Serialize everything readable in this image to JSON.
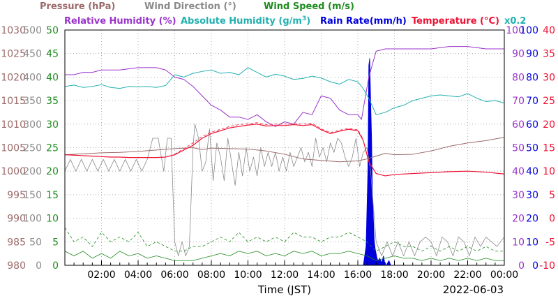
{
  "chart_data": {
    "type": "line",
    "legend": {
      "row1": [
        {
          "label": "Pressure (hPa)",
          "color": "#9c6a6a"
        },
        {
          "label": "Wind Direction (°)",
          "color": "#8a8a8a"
        },
        {
          "label": "Wind Speed (m/s)",
          "color": "#1e8c1e"
        }
      ],
      "row2": [
        {
          "label": "Relative Humidity (%)",
          "color": "#9933cc"
        },
        {
          "label": "Absolute Humidity (g/m",
          "sup": "3",
          "close": ")",
          "color": "#22b0b0"
        },
        {
          "label": "Rain Rate(mm/h)",
          "color": "#0000dd"
        },
        {
          "label": "Temperature (°C)",
          "color": "#ee1133"
        },
        {
          "label": "x0.2",
          "color": "#22b0b0"
        }
      ]
    },
    "axes": {
      "pressure": {
        "ticks": [
          "1030",
          "1025",
          "1020",
          "1015",
          "1010",
          "1005",
          "1000",
          "995",
          "990",
          "985",
          "980"
        ],
        "range": [
          980,
          1030
        ],
        "color": "#9c6a6a"
      },
      "wind_direction": {
        "ticks": [
          "500",
          "450",
          "400",
          "350",
          "300",
          "250",
          "200",
          "150",
          "100",
          "50",
          "0"
        ],
        "range": [
          0,
          500
        ],
        "color": "#8a8a8a"
      },
      "wind_speed": {
        "ticks": [
          "50",
          "45",
          "40",
          "35",
          "30",
          "25",
          "20",
          "15",
          "10",
          "5",
          "0"
        ],
        "range": [
          0,
          50
        ],
        "color": "#1e8c1e"
      },
      "humidity": {
        "ticks": [
          "100",
          "90",
          "80",
          "70",
          "60",
          "50",
          "40",
          "30",
          "20",
          "10",
          "0"
        ],
        "range": [
          0,
          100
        ],
        "color": "#9933cc"
      },
      "rain_rate": {
        "ticks": [
          "100",
          "90",
          "80",
          "70",
          "60",
          "50",
          "40",
          "30",
          "20",
          "10",
          "0"
        ],
        "range": [
          0,
          100
        ],
        "color": "#0000dd"
      },
      "temperature": {
        "ticks": [
          "40",
          "35",
          "30",
          "25",
          "20",
          "15",
          "10",
          "5",
          "0",
          "-5",
          "-10"
        ],
        "range": [
          -10,
          40
        ],
        "color": "#ee1133"
      }
    },
    "x_ticks": [
      "02:00",
      "04:00",
      "06:00",
      "08:00",
      "10:00",
      "12:00",
      "14:00",
      "16:00",
      "18:00",
      "20:00",
      "22:00",
      "00:00"
    ],
    "x_range_hours": [
      0,
      24
    ],
    "xlabel": "Time (JST)",
    "date": "2022-06-03",
    "grid": true,
    "series": [
      {
        "name": "Pressure (hPa)",
        "color": "#9c6a6a",
        "width": 1,
        "x": [
          0,
          1,
          2,
          3,
          4,
          5,
          6,
          7,
          7.5,
          8,
          9,
          10,
          11,
          12,
          13,
          14,
          15,
          16,
          16.5,
          17,
          17.5,
          18,
          19,
          20,
          21,
          22,
          23,
          24
        ],
        "y": [
          1003.5,
          1003.7,
          1003.9,
          1004.0,
          1004.2,
          1004.5,
          1004.8,
          1005.0,
          1004.6,
          1004.9,
          1004.8,
          1004.7,
          1004.3,
          1003.6,
          1002.6,
          1002.3,
          1002.0,
          1002.2,
          1002.6,
          1003.2,
          1003.8,
          1003.5,
          1003.6,
          1004.3,
          1005.3,
          1006.0,
          1006.5,
          1007.2
        ]
      },
      {
        "name": "Wind Direction (°)",
        "color": "#8a8a8a",
        "width": 0.8,
        "x": [
          0,
          0.3,
          0.6,
          0.9,
          1.2,
          1.5,
          1.8,
          2.1,
          2.4,
          2.7,
          3,
          3.3,
          3.6,
          3.9,
          4.2,
          4.5,
          4.8,
          5.1,
          5.4,
          5.6,
          5.8,
          6,
          6.2,
          6.4,
          6.6,
          6.8,
          7,
          7.1,
          7.3,
          7.5,
          7.7,
          7.9,
          8.1,
          8.3,
          8.5,
          8.7,
          8.9,
          9.1,
          9.3,
          9.5,
          9.7,
          9.9,
          10.1,
          10.3,
          10.5,
          10.7,
          10.9,
          11.1,
          11.3,
          11.5,
          11.7,
          11.9,
          12.1,
          12.3,
          12.5,
          12.7,
          12.9,
          13.1,
          13.3,
          13.5,
          13.7,
          13.9,
          14.1,
          14.3,
          14.5,
          14.7,
          14.9,
          15.1,
          15.3,
          15.5,
          15.7,
          15.9,
          16.1,
          16.3,
          16.5,
          16.7,
          17,
          17.3,
          17.6,
          17.9,
          18.2,
          18.5,
          18.8,
          19.1,
          19.4,
          19.7,
          20,
          20.3,
          20.6,
          20.9,
          21.2,
          21.5,
          21.8,
          22.1,
          22.4,
          22.7,
          23,
          23.3,
          23.6,
          24
        ],
        "y": [
          200,
          225,
          200,
          225,
          200,
          225,
          200,
          225,
          200,
          225,
          200,
          225,
          200,
          225,
          200,
          225,
          270,
          270,
          200,
          270,
          270,
          50,
          20,
          50,
          20,
          40,
          250,
          300,
          270,
          200,
          220,
          290,
          180,
          260,
          230,
          180,
          270,
          220,
          170,
          240,
          190,
          250,
          200,
          230,
          190,
          250,
          210,
          240,
          210,
          240,
          200,
          230,
          200,
          240,
          210,
          230,
          250,
          220,
          240,
          210,
          270,
          230,
          250,
          220,
          260,
          240,
          270,
          260,
          230,
          210,
          230,
          270,
          210,
          240,
          250,
          200,
          50,
          20,
          50,
          20,
          50,
          20,
          50,
          20,
          50,
          60,
          50,
          20,
          60,
          50,
          20,
          60,
          50,
          20,
          60,
          40,
          60,
          50,
          40,
          60
        ]
      },
      {
        "name": "Wind Speed (m/s)",
        "color": "#1e8c1e",
        "width": 0.8,
        "x": [
          0,
          0.5,
          1,
          1.5,
          2,
          2.5,
          3,
          3.5,
          4,
          4.5,
          5,
          5.5,
          6,
          6.5,
          7,
          7.5,
          8,
          8.5,
          9,
          9.5,
          10,
          10.5,
          11,
          11.5,
          12,
          12.5,
          13,
          13.5,
          14,
          14.5,
          15,
          15.5,
          16,
          16.5,
          17,
          17.5,
          18,
          18.5,
          19,
          19.5,
          20,
          20.5,
          21,
          21.5,
          22,
          22.5,
          23,
          23.5,
          24
        ],
        "y": [
          3,
          2,
          3,
          1.5,
          2.5,
          1.5,
          3,
          2,
          2.5,
          1.5,
          2,
          1.5,
          1,
          1,
          1,
          1.5,
          2,
          2.5,
          2,
          3,
          2.5,
          3,
          2,
          2.5,
          2,
          3,
          2.5,
          3,
          2,
          2.5,
          2.5,
          3,
          2.5,
          2,
          1,
          1.5,
          2,
          1.5,
          1.5,
          1,
          1.5,
          1,
          1.5,
          1,
          1.5,
          1,
          1.5,
          1,
          1
        ]
      },
      {
        "name": "Wind Speed gust (m/s)",
        "color": "#1e8c1e",
        "width": 0.8,
        "dash": "4,3",
        "x": [
          0,
          0.5,
          1,
          1.5,
          2,
          2.5,
          3,
          3.5,
          4,
          4.5,
          5,
          5.5,
          6,
          6.5,
          7,
          7.5,
          8,
          8.5,
          9,
          9.5,
          10,
          10.5,
          11,
          11.5,
          12,
          12.5,
          13,
          13.5,
          14,
          14.5,
          15,
          15.5,
          16,
          16.5,
          17,
          17.5,
          18,
          18.5,
          19,
          19.5,
          20,
          20.5,
          21,
          21.5,
          22,
          22.5,
          23,
          23.5,
          24
        ],
        "y": [
          8,
          5,
          6,
          4,
          7,
          5,
          6,
          5,
          7,
          4,
          5,
          4,
          3,
          3,
          4,
          4,
          5,
          6,
          5,
          7,
          5,
          6,
          5,
          6,
          5,
          7,
          6,
          6,
          5,
          6,
          6,
          7,
          6,
          5,
          3,
          4,
          5,
          4,
          4,
          3,
          4,
          3,
          4,
          3,
          4,
          3,
          4,
          3,
          3
        ]
      },
      {
        "name": "Relative Humidity (%)",
        "color": "#9933cc",
        "width": 1,
        "x": [
          0,
          0.5,
          1,
          1.5,
          2,
          3,
          4,
          5,
          5.5,
          6,
          6.5,
          7,
          7.5,
          8,
          8.5,
          9,
          9.5,
          10,
          10.5,
          11,
          11.5,
          12,
          12.5,
          13,
          13.5,
          14,
          14.5,
          15,
          15.5,
          16,
          16.2,
          16.6,
          17,
          17.5,
          18,
          19,
          20,
          21,
          22,
          23,
          24
        ],
        "y": [
          81,
          81,
          82,
          82,
          83,
          83,
          84,
          84,
          83,
          80,
          79,
          76,
          72,
          68,
          66,
          63,
          63,
          62,
          64,
          61,
          59,
          61,
          60,
          65,
          64,
          72,
          71,
          66,
          64,
          64,
          62,
          80,
          91,
          92,
          92,
          92,
          92,
          93,
          93,
          92,
          92
        ]
      },
      {
        "name": "Absolute Humidity x0.2 (g/m3)",
        "color": "#22b0b0",
        "width": 1,
        "x": [
          0,
          0.5,
          1,
          1.5,
          2,
          2.5,
          3,
          3.5,
          4,
          4.5,
          5,
          5.5,
          6,
          6.5,
          7,
          7.5,
          8,
          8.5,
          9,
          9.5,
          10,
          10.5,
          11,
          11.5,
          12,
          12.5,
          13,
          13.5,
          14,
          14.5,
          15,
          15.5,
          16,
          16.3,
          16.6,
          17,
          17.5,
          18,
          18.5,
          19,
          19.5,
          20,
          20.5,
          21,
          21.5,
          22,
          22.5,
          23,
          23.5,
          24
        ],
        "y": [
          38.0,
          38.3,
          37.8,
          38.0,
          38.4,
          37.8,
          37.6,
          38.0,
          37.9,
          38.0,
          37.8,
          38.2,
          40.5,
          40.0,
          40.8,
          41.2,
          41.5,
          40.8,
          41.0,
          40.5,
          42.0,
          41.0,
          40.0,
          40.6,
          40.2,
          39.5,
          39.7,
          40.2,
          39.8,
          39.0,
          38.5,
          39.5,
          39.0,
          37.5,
          35.5,
          32.0,
          32.5,
          33.5,
          34.0,
          35.0,
          35.5,
          36.0,
          36.2,
          36.0,
          35.8,
          36.5,
          35.5,
          34.8,
          35.0,
          34.5
        ]
      },
      {
        "name": "Temperature (°C)",
        "color": "#ee1133",
        "width": 1.2,
        "x": [
          0,
          0.5,
          1,
          1.5,
          2,
          2.5,
          3,
          3.5,
          4,
          4.5,
          5,
          5.5,
          6,
          6.5,
          7,
          7.5,
          8,
          8.5,
          9,
          9.5,
          10,
          10.5,
          11,
          11.5,
          12,
          12.5,
          13,
          13.5,
          14,
          14.5,
          15,
          15.5,
          16,
          16.3,
          16.6,
          17,
          17.5,
          18,
          19,
          20,
          21,
          22,
          23,
          24
        ],
        "y": [
          13.5,
          13.4,
          13.3,
          13.2,
          13.1,
          13.0,
          13.0,
          12.9,
          12.9,
          12.9,
          12.9,
          13.0,
          13.5,
          14.5,
          15.5,
          17.0,
          18.0,
          18.6,
          19.2,
          19.5,
          19.8,
          20.0,
          19.6,
          19.7,
          19.7,
          19.9,
          19.7,
          19.9,
          18.8,
          18.0,
          18.5,
          18.9,
          18.6,
          16.5,
          12.0,
          9.5,
          9.0,
          9.3,
          9.5,
          9.7,
          9.9,
          10.0,
          9.8,
          9.4
        ]
      },
      {
        "name": "Temperature dew (°C)",
        "color": "#ee1133",
        "width": 0.8,
        "dash": "4,3",
        "x": [
          6,
          6.5,
          7,
          7.5,
          8,
          8.5,
          9,
          9.5,
          10,
          10.5,
          11,
          11.5,
          12,
          12.5,
          13,
          13.5,
          14,
          14.5,
          15,
          15.5,
          16,
          16.3
        ],
        "y": [
          13.6,
          14.8,
          16.0,
          17.4,
          18.3,
          18.9,
          19.5,
          19.9,
          20.1,
          20.3,
          19.9,
          20.0,
          20.0,
          20.2,
          20.0,
          20.2,
          19.0,
          18.2,
          18.7,
          19.1,
          18.8,
          16.8
        ]
      }
    ],
    "rain_rate": {
      "name": "Rain Rate(mm/h)",
      "color": "#0000dd",
      "x": [
        16.0,
        16.3,
        16.45,
        16.55,
        16.6,
        16.65,
        16.7,
        16.75,
        16.8,
        16.85,
        16.9,
        16.95,
        17.0,
        17.05,
        17.1,
        17.2,
        17.3,
        17.4,
        17.5,
        17.55,
        17.7,
        17.8
      ],
      "y": [
        0,
        0,
        8,
        40,
        85,
        88,
        70,
        55,
        30,
        20,
        10,
        7,
        5,
        3,
        2,
        3,
        1,
        4,
        0,
        0,
        2,
        0
      ]
    }
  }
}
